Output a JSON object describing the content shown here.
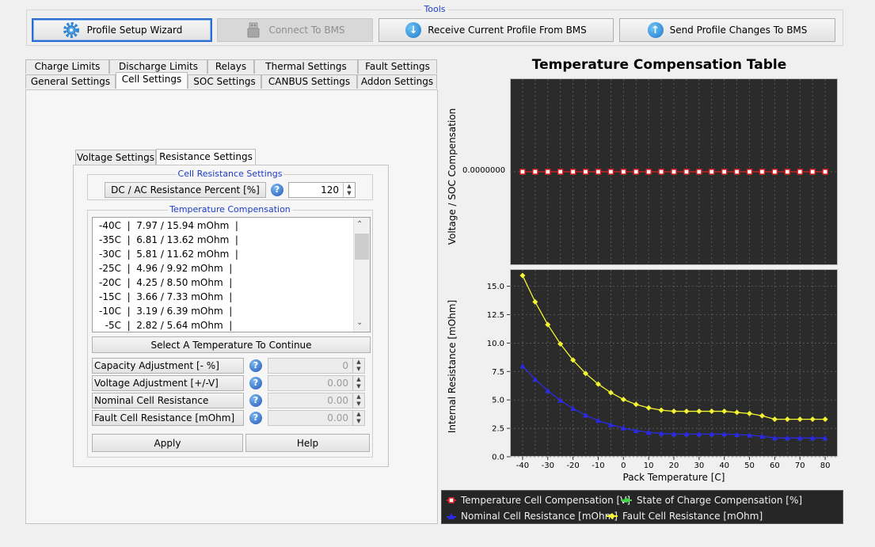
{
  "toolbar": {
    "title": "Tools",
    "buttons": [
      {
        "label": "Profile Setup Wizard",
        "icon": "gear-wizard-icon",
        "state": "focused"
      },
      {
        "label": "Connect To BMS",
        "icon": "usb-icon",
        "state": "disabled"
      },
      {
        "label": "Receive Current Profile From BMS",
        "icon": "arrow-down-icon"
      },
      {
        "label": "Send Profile Changes To BMS",
        "icon": "arrow-up-icon"
      }
    ]
  },
  "main_tabs": {
    "row1": [
      "Charge Limits",
      "Discharge Limits",
      "Relays",
      "Thermal Settings",
      "Fault Settings"
    ],
    "row2": [
      "General Settings",
      "Cell Settings",
      "SOC Settings",
      "CANBUS Settings",
      "Addon Settings"
    ],
    "active": "Cell Settings"
  },
  "sub_tabs": {
    "items": [
      "Voltage Settings",
      "Resistance Settings"
    ],
    "active": "Resistance Settings"
  },
  "cell_resistance": {
    "legend": "Cell Resistance Settings",
    "label": "DC / AC Resistance Percent [%]",
    "value": "120"
  },
  "temp_comp": {
    "legend": "Temperature Compensation",
    "items": [
      "-40C  |  7.97 / 15.94 mOhm  |",
      "-35C  |  6.81 / 13.62 mOhm  |",
      "-30C  |  5.81 / 11.62 mOhm  |",
      "-25C  |  4.96 / 9.92 mOhm  |",
      "-20C  |  4.25 / 8.50 mOhm  |",
      "-15C  |  3.66 / 7.33 mOhm  |",
      "-10C  |  3.19 / 6.39 mOhm  |",
      "  -5C  |  2.82 / 5.64 mOhm  |"
    ],
    "select_label": "Select A Temperature To Continue",
    "fields": [
      {
        "label": "Capacity Adjustment [- %]",
        "value": "0"
      },
      {
        "label": "Voltage Adjustment [+/-V]",
        "value": "0.00"
      },
      {
        "label": "Nominal Cell Resistance [mOhm]",
        "value": "0.00"
      },
      {
        "label": "Fault Cell Resistance [mOhm]",
        "value": "0.00"
      }
    ],
    "apply_label": "Apply",
    "help_label": "Help"
  },
  "chart_data": {
    "type": "line",
    "title": "Temperature Compensation Table",
    "xlabel": "Pack Temperature [C]",
    "top_ylabel": "Voltage / SOC Compensation",
    "top_ytick": "0.0000000",
    "bottom_ylabel": "Internal Resistance [mOhm]",
    "x": [
      -40,
      -35,
      -30,
      -25,
      -20,
      -15,
      -10,
      -5,
      0,
      5,
      10,
      15,
      20,
      25,
      30,
      35,
      40,
      45,
      50,
      55,
      60,
      65,
      70,
      75,
      80
    ],
    "xlim": [
      -45,
      85
    ],
    "xticks": [
      -40,
      -30,
      -20,
      -10,
      0,
      10,
      20,
      30,
      40,
      50,
      60,
      70,
      80
    ],
    "ylim": [
      0,
      16.5
    ],
    "yticks": [
      "0.0",
      "2.5",
      "5.0",
      "7.5",
      "10.0",
      "12.5",
      "15.0"
    ],
    "series": [
      {
        "name": "Temperature Cell Compensation [V]",
        "color": "#e02020",
        "marker": "square",
        "values": [
          0,
          0,
          0,
          0,
          0,
          0,
          0,
          0,
          0,
          0,
          0,
          0,
          0,
          0,
          0,
          0,
          0,
          0,
          0,
          0,
          0,
          0,
          0,
          0,
          0
        ]
      },
      {
        "name": "State of Charge Compensation [%]",
        "color": "#3cd63c",
        "marker": "circle",
        "values": [
          0,
          0,
          0,
          0,
          0,
          0,
          0,
          0,
          0,
          0,
          0,
          0,
          0,
          0,
          0,
          0,
          0,
          0,
          0,
          0,
          0,
          0,
          0,
          0,
          0
        ]
      },
      {
        "name": "Nominal Cell Resistance [mOhm]",
        "color": "#2a2ae8",
        "marker": "triangle",
        "values": [
          7.97,
          6.81,
          5.81,
          4.96,
          4.25,
          3.66,
          3.19,
          2.82,
          2.52,
          2.3,
          2.15,
          2.05,
          2.0,
          2.0,
          2.0,
          2.0,
          2.0,
          1.95,
          1.9,
          1.8,
          1.65,
          1.65,
          1.65,
          1.65,
          1.65
        ]
      },
      {
        "name": "Fault Cell Resistance [mOhm]",
        "color": "#f4f430",
        "marker": "diamond",
        "values": [
          15.94,
          13.62,
          11.62,
          9.92,
          8.5,
          7.33,
          6.39,
          5.64,
          5.04,
          4.6,
          4.3,
          4.1,
          4.0,
          4.0,
          4.0,
          4.0,
          4.0,
          3.9,
          3.8,
          3.6,
          3.3,
          3.3,
          3.3,
          3.3,
          3.3
        ]
      }
    ]
  }
}
